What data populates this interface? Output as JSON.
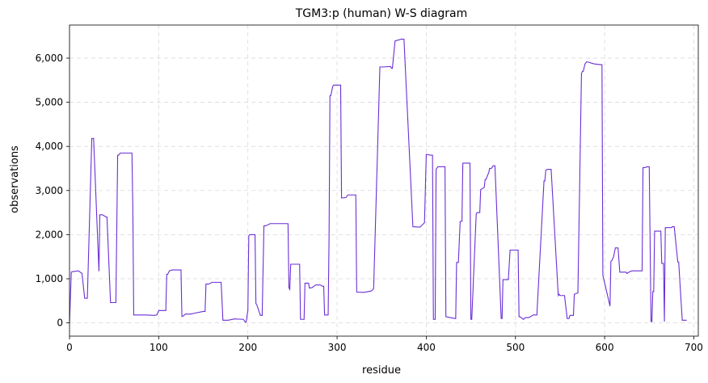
{
  "chart_data": {
    "type": "line",
    "title": "TGM3:p (human) W-S diagram",
    "xlabel": "residue",
    "ylabel": "observations",
    "xlim": [
      0,
      705
    ],
    "ylim": [
      -300,
      6750
    ],
    "xticks": [
      0,
      100,
      200,
      300,
      400,
      500,
      600,
      700
    ],
    "yticks": [
      0,
      1000,
      2000,
      3000,
      4000,
      5000,
      6000
    ],
    "ytick_labels": [
      "0",
      "1,000",
      "2,000",
      "3,000",
      "4,000",
      "5,000",
      "6,000"
    ],
    "grid": true,
    "line_color": "#6a2fd6",
    "series": [
      {
        "name": "",
        "x": [
          0,
          2,
          3,
          10,
          14,
          17,
          20,
          25,
          27,
          33,
          34,
          35,
          37,
          41,
          42,
          46,
          47,
          52,
          54,
          55,
          57,
          60,
          65,
          70,
          71,
          72,
          85,
          95,
          98,
          100,
          108,
          109,
          110,
          112,
          115,
          125,
          126,
          127,
          130,
          136,
          140,
          150,
          152,
          153,
          156,
          160,
          165,
          170,
          171,
          172,
          178,
          185,
          195,
          197,
          198,
          200,
          201,
          202,
          208,
          209,
          210,
          214,
          216,
          218,
          220,
          225,
          238,
          245,
          246,
          247,
          248,
          258,
          259,
          263,
          264,
          268,
          269,
          272,
          276,
          281,
          284,
          285,
          286,
          290,
          291,
          292,
          293,
          295,
          296,
          300,
          304,
          305,
          310,
          312,
          320,
          321,
          322,
          330,
          335,
          338,
          340,
          341,
          348,
          352,
          360,
          361,
          362,
          365,
          372,
          373,
          375,
          385,
          393,
          397,
          398,
          400,
          405,
          407,
          408,
          410,
          411,
          413,
          416,
          420,
          421,
          422,
          432,
          433,
          434,
          436,
          438,
          440,
          441,
          442,
          449,
          450,
          451,
          456,
          457,
          460,
          461,
          465,
          466,
          467,
          469,
          470,
          471,
          473,
          475,
          476,
          477,
          484,
          485,
          486,
          487,
          492,
          494,
          495,
          503,
          504,
          505,
          509,
          511,
          512,
          515,
          520,
          523,
          524,
          532,
          533,
          534,
          536,
          539,
          540,
          548,
          549,
          550,
          555,
          558,
          560,
          561,
          565,
          566,
          570,
          574,
          575,
          576,
          578,
          580,
          588,
          592,
          597,
          598,
          606,
          607,
          608,
          610,
          612,
          614,
          615,
          617,
          624,
          625,
          628,
          631,
          632,
          642,
          643,
          645,
          648,
          649,
          650,
          652,
          653,
          654,
          655,
          656,
          657,
          662,
          663,
          664,
          666,
          667,
          668,
          675,
          676,
          678,
          682,
          683,
          687,
          688,
          692
        ],
        "values": [
          0,
          1150,
          1160,
          1180,
          1120,
          560,
          560,
          4180,
          4180,
          1170,
          2450,
          2450,
          2450,
          2400,
          2400,
          460,
          460,
          460,
          3800,
          3800,
          3850,
          3850,
          3850,
          3850,
          2600,
          180,
          180,
          170,
          180,
          280,
          280,
          1100,
          1100,
          1180,
          1200,
          1200,
          150,
          150,
          200,
          200,
          220,
          260,
          260,
          880,
          880,
          920,
          920,
          920,
          500,
          60,
          60,
          90,
          80,
          20,
          20,
          280,
          1970,
          2000,
          2000,
          440,
          410,
          170,
          170,
          2200,
          2200,
          2250,
          2250,
          2250,
          800,
          760,
          1330,
          1330,
          80,
          80,
          900,
          900,
          790,
          800,
          860,
          860,
          830,
          830,
          180,
          180,
          1920,
          5150,
          5150,
          5350,
          5390,
          5390,
          5390,
          2830,
          2840,
          2900,
          2900,
          2900,
          700,
          690,
          710,
          720,
          750,
          780,
          5800,
          5800,
          5810,
          5770,
          5770,
          6390,
          6430,
          6430,
          6430,
          2180,
          2170,
          2250,
          2270,
          3820,
          3800,
          3800,
          80,
          80,
          3480,
          3540,
          3540,
          3540,
          3540,
          140,
          100,
          100,
          1370,
          1370,
          2300,
          2300,
          3620,
          3620,
          3620,
          80,
          80,
          2470,
          2500,
          2500,
          3020,
          3070,
          3250,
          3250,
          3360,
          3400,
          3500,
          3500,
          3560,
          3560,
          3560,
          100,
          100,
          980,
          980,
          980,
          1650,
          1650,
          1650,
          140,
          140,
          80,
          120,
          120,
          120,
          180,
          180,
          180,
          3220,
          3220,
          3460,
          3480,
          3480,
          3480,
          620,
          650,
          620,
          620,
          100,
          100,
          170,
          170,
          650,
          680,
          5650,
          5700,
          5700,
          5870,
          5920,
          5870,
          5860,
          5850,
          1080,
          380,
          1400,
          1410,
          1500,
          1700,
          1700,
          1700,
          1150,
          1150,
          1120,
          1160,
          1180,
          1180,
          1180,
          3520,
          3520,
          3540,
          3540,
          3540,
          30,
          30,
          710,
          710,
          2080,
          2080,
          2080,
          2080,
          1350,
          1350,
          30,
          2160,
          2160,
          2180,
          2180,
          1380,
          1380,
          60,
          60,
          60
        ]
      }
    ]
  }
}
